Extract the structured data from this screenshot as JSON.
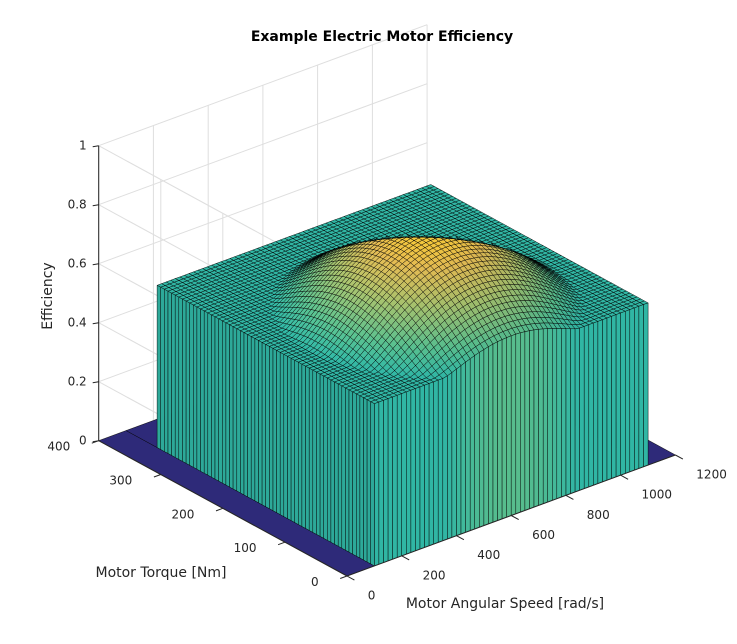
{
  "chart_data": {
    "type": "surface",
    "title": "Example Electric Motor Efficiency",
    "xlabel": "Motor Angular Speed [rad/s]",
    "ylabel": "Motor Torque [Nm]",
    "zlabel": "Efficiency",
    "xlim": [
      0,
      1200
    ],
    "ylim": [
      0,
      400
    ],
    "zlim": [
      0,
      1
    ],
    "xticks": [
      "0",
      "200",
      "400",
      "600",
      "800",
      "1000",
      "1200"
    ],
    "yticks": [
      "0",
      "100",
      "200",
      "300",
      "400"
    ],
    "zticks": [
      "0",
      "0.2",
      "0.4",
      "0.6",
      "0.8",
      "1"
    ],
    "grid": true,
    "colormap": "parula",
    "plateau_efficiency": 0.55,
    "peak_efficiency": 0.8,
    "peak_speed": 600,
    "speed_domain": [
      100,
      1100
    ],
    "torque_domain": [
      0,
      350
    ],
    "colors": {
      "mesh_edge": "#000000",
      "grid": "#dedede",
      "axis": "#262626"
    }
  }
}
